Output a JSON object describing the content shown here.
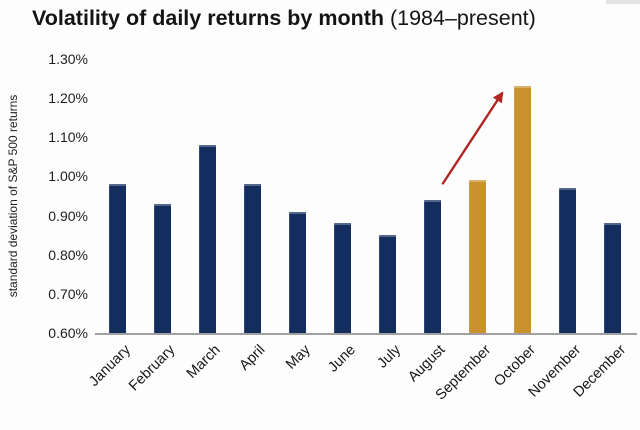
{
  "page": {
    "background": "#FDFDFE"
  },
  "title": {
    "main": "Volatility of daily returns by month",
    "suffix": " (1984–present)"
  },
  "chart_data": {
    "type": "bar",
    "title": "Volatility of daily returns by month (1984–present)",
    "xlabel": "",
    "ylabel": "standard deviation of S&P 500 returns",
    "categories": [
      "January",
      "February",
      "March",
      "April",
      "May",
      "June",
      "July",
      "August",
      "September",
      "October",
      "November",
      "December"
    ],
    "values": [
      0.98,
      0.93,
      1.08,
      0.98,
      0.91,
      0.88,
      0.85,
      0.94,
      0.99,
      1.23,
      0.97,
      0.88
    ],
    "unit": "%",
    "ylim": [
      0.6,
      1.3
    ],
    "ytick_step": 0.1,
    "ytick_labels_top_to_bottom": [
      "1.30%",
      "1.20%",
      "1.10%",
      "1.00%",
      "0.90%",
      "0.80%",
      "0.70%",
      "0.60%"
    ],
    "grid": false,
    "legend": false,
    "highlight_indices": [
      8,
      9
    ],
    "colors": {
      "bar_default": "#122D5E",
      "bar_highlight": "#C9922D",
      "axis_line": "#A0A0A0",
      "arrow": "#B02622",
      "text": "#1C1C1C"
    },
    "annotation_arrow": {
      "description": "red arrow pointing from above August/September toward October peak",
      "from_frac": {
        "x": 0.642,
        "y": 0.454
      },
      "to_frac": {
        "x": 0.751,
        "y": 0.125
      }
    }
  }
}
